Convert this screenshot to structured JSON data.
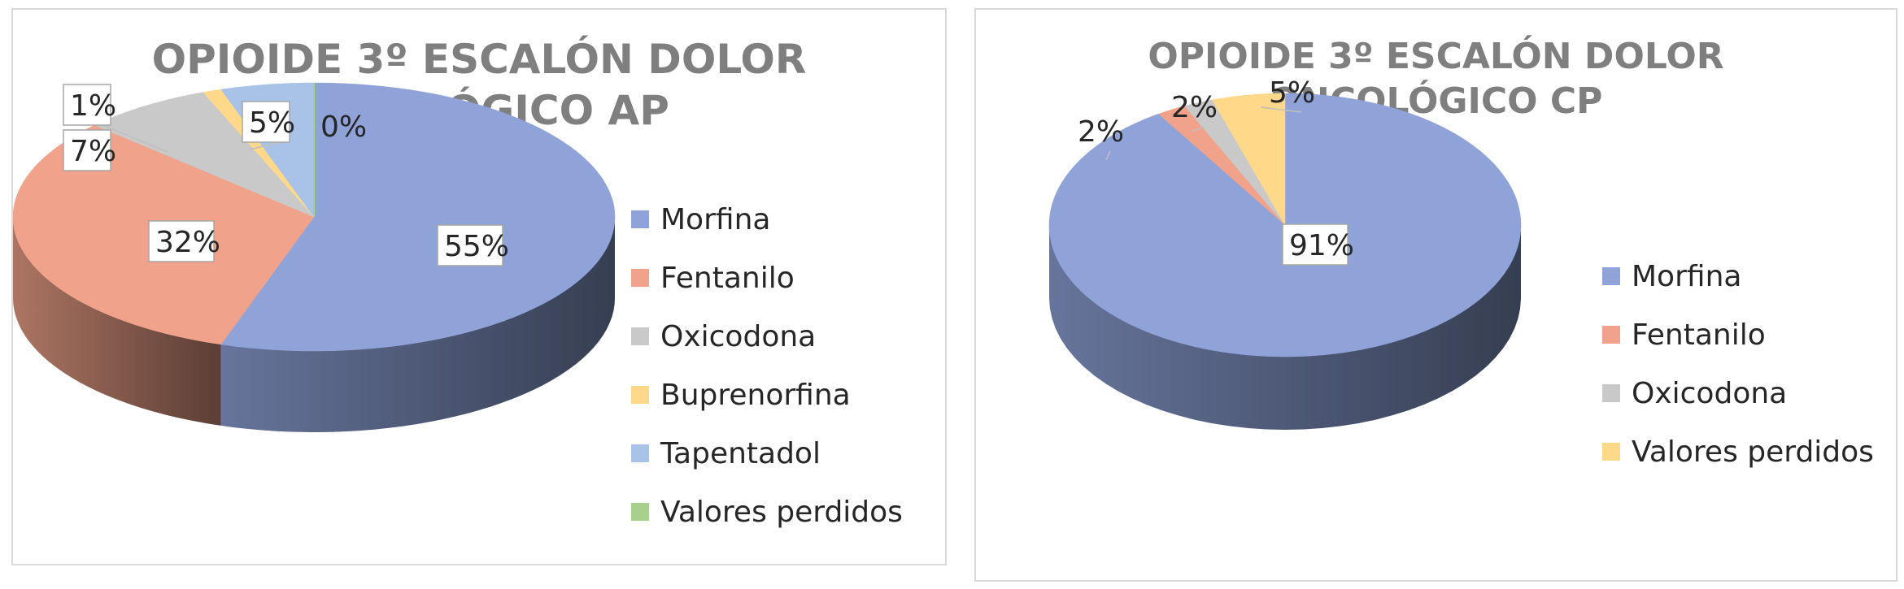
{
  "chart_data": [
    {
      "type": "pie",
      "title": "OPIOIDE 3º ESCALÓN DOLOR ONCOLÓGICO AP",
      "title_lines": [
        "OPIOIDE 3º ESCALÓN DOLOR",
        "ONCOLÓGICO AP"
      ],
      "legend_position": "right",
      "three_d": true,
      "categories": [
        "Morfina",
        "Fentanilo",
        "Oxicodona",
        "Buprenorfina",
        "Tapentadol",
        "Valores perdidos"
      ],
      "values": [
        55,
        32,
        7,
        1,
        5,
        0
      ],
      "data_labels": [
        "55%",
        "32%",
        "7%",
        "1%",
        "5%",
        "0%"
      ],
      "colors": [
        "#8fa3d9",
        "#f0a28a",
        "#c9c9c9",
        "#ffd88a",
        "#a9c3e8",
        "#a8d08d"
      ]
    },
    {
      "type": "pie",
      "title": "OPIOIDE 3º ESCALÓN DOLOR ONCOLÓGICO CP",
      "title_lines": [
        "OPIOIDE 3º ESCALÓN DOLOR",
        "ONCOLÓGICO CP"
      ],
      "legend_position": "right",
      "three_d": true,
      "categories": [
        "Morfina",
        "Fentanilo",
        "Oxicodona",
        "Valores perdidos"
      ],
      "values": [
        91,
        2,
        2,
        5
      ],
      "data_labels": [
        "91%",
        "2%",
        "2%",
        "5%"
      ],
      "colors": [
        "#8fa3d9",
        "#f0a28a",
        "#c9c9c9",
        "#ffd88a"
      ]
    }
  ]
}
